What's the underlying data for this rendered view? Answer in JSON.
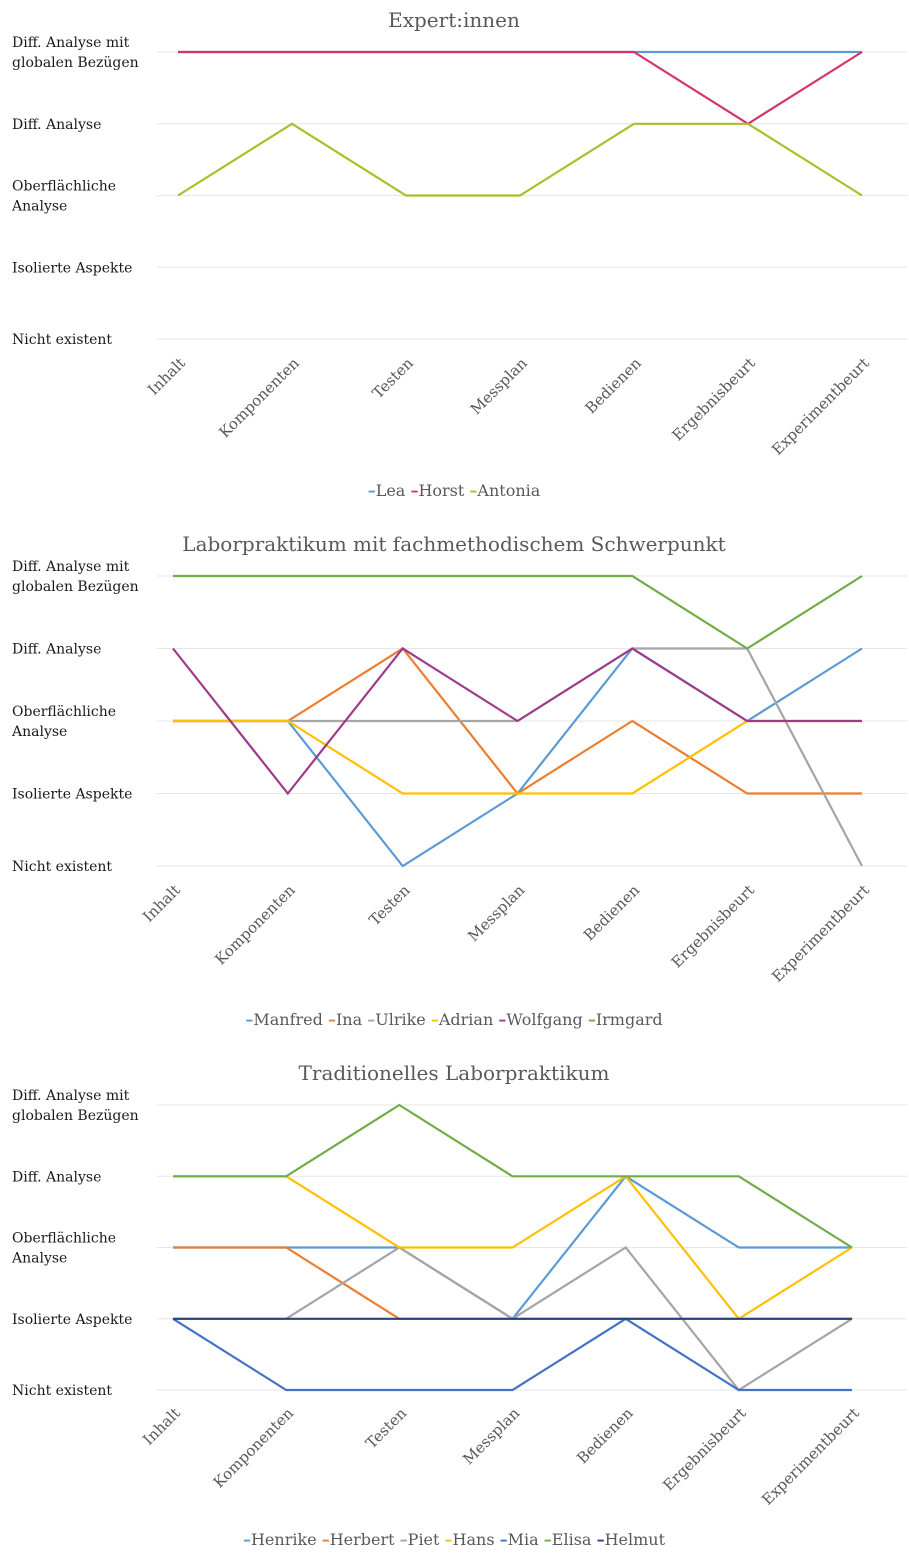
{
  "chart_data": [
    {
      "type": "line",
      "title": "Expert:innen",
      "xlabel": "",
      "ylabel": "",
      "y_levels": [
        [
          "Nicht existent"
        ],
        [
          "Isolierte Aspekte"
        ],
        [
          "Oberflächliche",
          "Analyse"
        ],
        [
          "Diff. Analyse"
        ],
        [
          "Diff. Analyse mit",
          "globalen Bezügen"
        ]
      ],
      "ylim": [
        0,
        4
      ],
      "categories": [
        "Inhalt",
        "Komponenten",
        "Testen",
        "Messplan",
        "Bedienen",
        "Ergebnisbeurt",
        "Experimentbeurt"
      ],
      "grid": true,
      "legend_position": "bottom",
      "series": [
        {
          "name": "Lea",
          "color": "#5b9bd5",
          "values": [
            4,
            4,
            4,
            4,
            4,
            4,
            4
          ]
        },
        {
          "name": "Horst",
          "color": "#d6336c",
          "values": [
            4,
            4,
            4,
            4,
            4,
            3,
            4
          ]
        },
        {
          "name": "Antonia",
          "color": "#a5c22a",
          "values": [
            2,
            3,
            2,
            2,
            3,
            3,
            2
          ]
        }
      ]
    },
    {
      "type": "line",
      "title": "Laborpraktikum mit fachmethodischem Schwerpunkt",
      "xlabel": "",
      "ylabel": "",
      "y_levels": [
        [
          "Nicht existent"
        ],
        [
          "Isolierte Aspekte"
        ],
        [
          "Oberflächliche",
          "Analyse"
        ],
        [
          "Diff. Analyse"
        ],
        [
          "Diff. Analyse mit",
          "globalen Bezügen"
        ]
      ],
      "ylim": [
        0,
        4
      ],
      "categories": [
        "Inhalt",
        "Komponenten",
        "Testen",
        "Messplan",
        "Bedienen",
        "Ergebnisbeurt",
        "Experimentbeurt"
      ],
      "grid": true,
      "legend_position": "bottom",
      "series": [
        {
          "name": "Manfred",
          "color": "#5b9bd5",
          "values": [
            2,
            2,
            0,
            1,
            3,
            2,
            3
          ]
        },
        {
          "name": "Ina",
          "color": "#ed7d31",
          "values": [
            2,
            2,
            3,
            1,
            2,
            1,
            1
          ]
        },
        {
          "name": "Ulrike",
          "color": "#a5a5a5",
          "values": [
            2,
            2,
            2,
            2,
            3,
            3,
            0
          ]
        },
        {
          "name": "Adrian",
          "color": "#ffc000",
          "values": [
            2,
            2,
            1,
            1,
            1,
            2,
            2
          ]
        },
        {
          "name": "Wolfgang",
          "color": "#9e3a8c",
          "values": [
            3,
            1,
            3,
            2,
            3,
            2,
            2
          ]
        },
        {
          "name": "Irmgard",
          "color": "#70ad47",
          "values": [
            4,
            4,
            4,
            4,
            4,
            3,
            4
          ]
        }
      ]
    },
    {
      "type": "line",
      "title": "Traditionelles Laborpraktikum",
      "xlabel": "",
      "ylabel": "",
      "y_levels": [
        [
          "Nicht existent"
        ],
        [
          "Isolierte Aspekte"
        ],
        [
          "Oberflächliche",
          "Analyse"
        ],
        [
          "Diff. Analyse"
        ],
        [
          "Diff. Analyse mit",
          "globalen Bezügen"
        ]
      ],
      "ylim": [
        0,
        4
      ],
      "categories": [
        "Inhalt",
        "Komponenten",
        "Testen",
        "Messplan",
        "Bedienen",
        "Ergebnisbeurt",
        "Experimentbeurt"
      ],
      "grid": true,
      "legend_position": "bottom",
      "series": [
        {
          "name": "Henrike",
          "color": "#5b9bd5",
          "values": [
            2,
            2,
            2,
            1,
            3,
            2,
            2
          ]
        },
        {
          "name": "Herbert",
          "color": "#ed7d31",
          "values": [
            2,
            2,
            1,
            1,
            1,
            1,
            1
          ]
        },
        {
          "name": "Piet",
          "color": "#a5a5a5",
          "values": [
            1,
            1,
            2,
            1,
            2,
            0,
            1
          ]
        },
        {
          "name": "Hans",
          "color": "#ffc000",
          "values": [
            3,
            3,
            2,
            2,
            3,
            1,
            2
          ]
        },
        {
          "name": "Mia",
          "color": "#4472c4",
          "values": [
            1,
            0,
            0,
            0,
            1,
            0,
            0
          ]
        },
        {
          "name": "Elisa",
          "color": "#70ad47",
          "values": [
            3,
            3,
            4,
            3,
            3,
            3,
            2
          ]
        },
        {
          "name": "Helmut",
          "color": "#264478",
          "values": [
            1,
            1,
            1,
            1,
            1,
            1,
            1
          ]
        }
      ]
    }
  ]
}
